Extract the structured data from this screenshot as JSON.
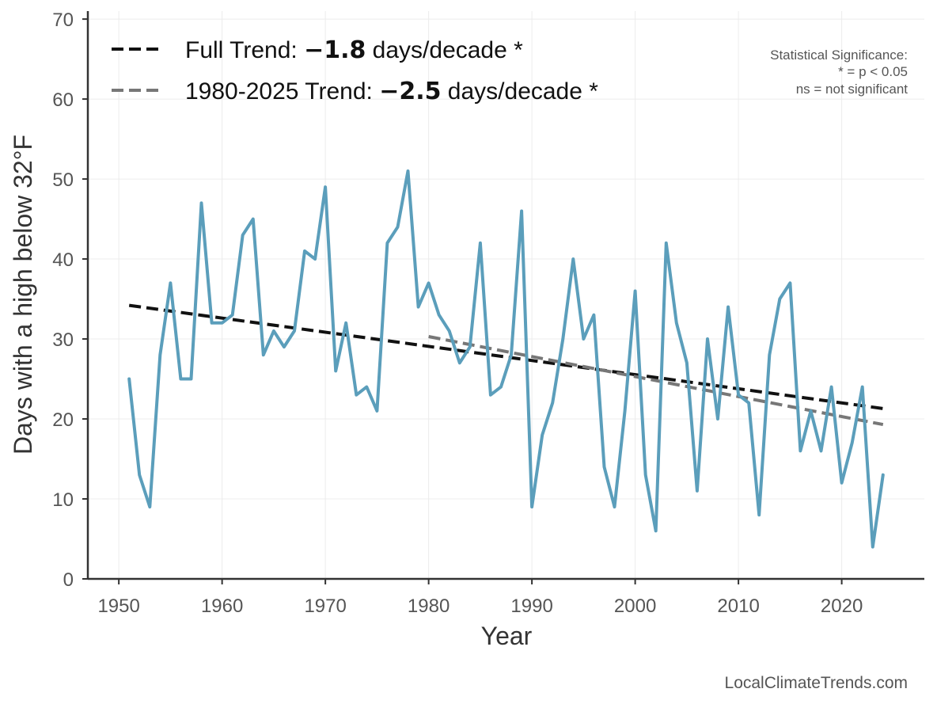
{
  "chart_data": {
    "type": "line",
    "xlabel": "Year",
    "ylabel": "Days with a high below 32°F",
    "xlim": [
      1947,
      2028
    ],
    "ylim": [
      0,
      71
    ],
    "xticks": [
      1950,
      1960,
      1970,
      1980,
      1990,
      2000,
      2010,
      2020
    ],
    "yticks": [
      0,
      10,
      20,
      30,
      40,
      50,
      60,
      70
    ],
    "grid": true,
    "legend_position": "top-left",
    "series": [
      {
        "color": "#5b9ebb",
        "x": [
          1951,
          1952,
          1953,
          1954,
          1955,
          1956,
          1957,
          1958,
          1959,
          1960,
          1961,
          1962,
          1963,
          1964,
          1965,
          1966,
          1967,
          1968,
          1969,
          1970,
          1971,
          1972,
          1973,
          1974,
          1975,
          1976,
          1977,
          1978,
          1979,
          1980,
          1981,
          1982,
          1983,
          1984,
          1985,
          1986,
          1987,
          1988,
          1989,
          1990,
          1991,
          1992,
          1993,
          1994,
          1995,
          1996,
          1997,
          1998,
          1999,
          2000,
          2001,
          2002,
          2003,
          2004,
          2005,
          2006,
          2007,
          2008,
          2009,
          2010,
          2011,
          2012,
          2013,
          2014,
          2015,
          2016,
          2017,
          2018,
          2019,
          2020,
          2021,
          2022,
          2023,
          2024
        ],
        "y": [
          25,
          13,
          9,
          28,
          37,
          25,
          25,
          47,
          32,
          32,
          33,
          43,
          45,
          28,
          31,
          29,
          31,
          41,
          40,
          49,
          26,
          32,
          23,
          24,
          21,
          42,
          44,
          51,
          34,
          37,
          33,
          31,
          27,
          29,
          42,
          23,
          24,
          28,
          46,
          9,
          18,
          22,
          30,
          40,
          30,
          33,
          14,
          9,
          21,
          36,
          13,
          6,
          42,
          32,
          27,
          11,
          30,
          20,
          34,
          23,
          22,
          8,
          28,
          35,
          37,
          16,
          21,
          16,
          24,
          12,
          17,
          24,
          4,
          13
        ]
      }
    ],
    "trend_lines": [
      {
        "label_prefix": "Full Trend: ",
        "value": "−1.8",
        "label_suffix": " days/decade *",
        "color": "#111111",
        "x": [
          1951,
          2024
        ],
        "y": [
          34.2,
          21.3
        ]
      },
      {
        "label_prefix": "1980-2025 Trend: ",
        "value": "−2.5",
        "label_suffix": " days/decade *",
        "color": "#777777",
        "x": [
          1980,
          2024
        ],
        "y": [
          30.3,
          19.3
        ]
      }
    ],
    "annotations": {
      "significance": [
        "Statistical Significance:",
        "* = p < 0.05",
        "ns = not significant"
      ],
      "credit": "LocalClimateTrends.com"
    }
  }
}
